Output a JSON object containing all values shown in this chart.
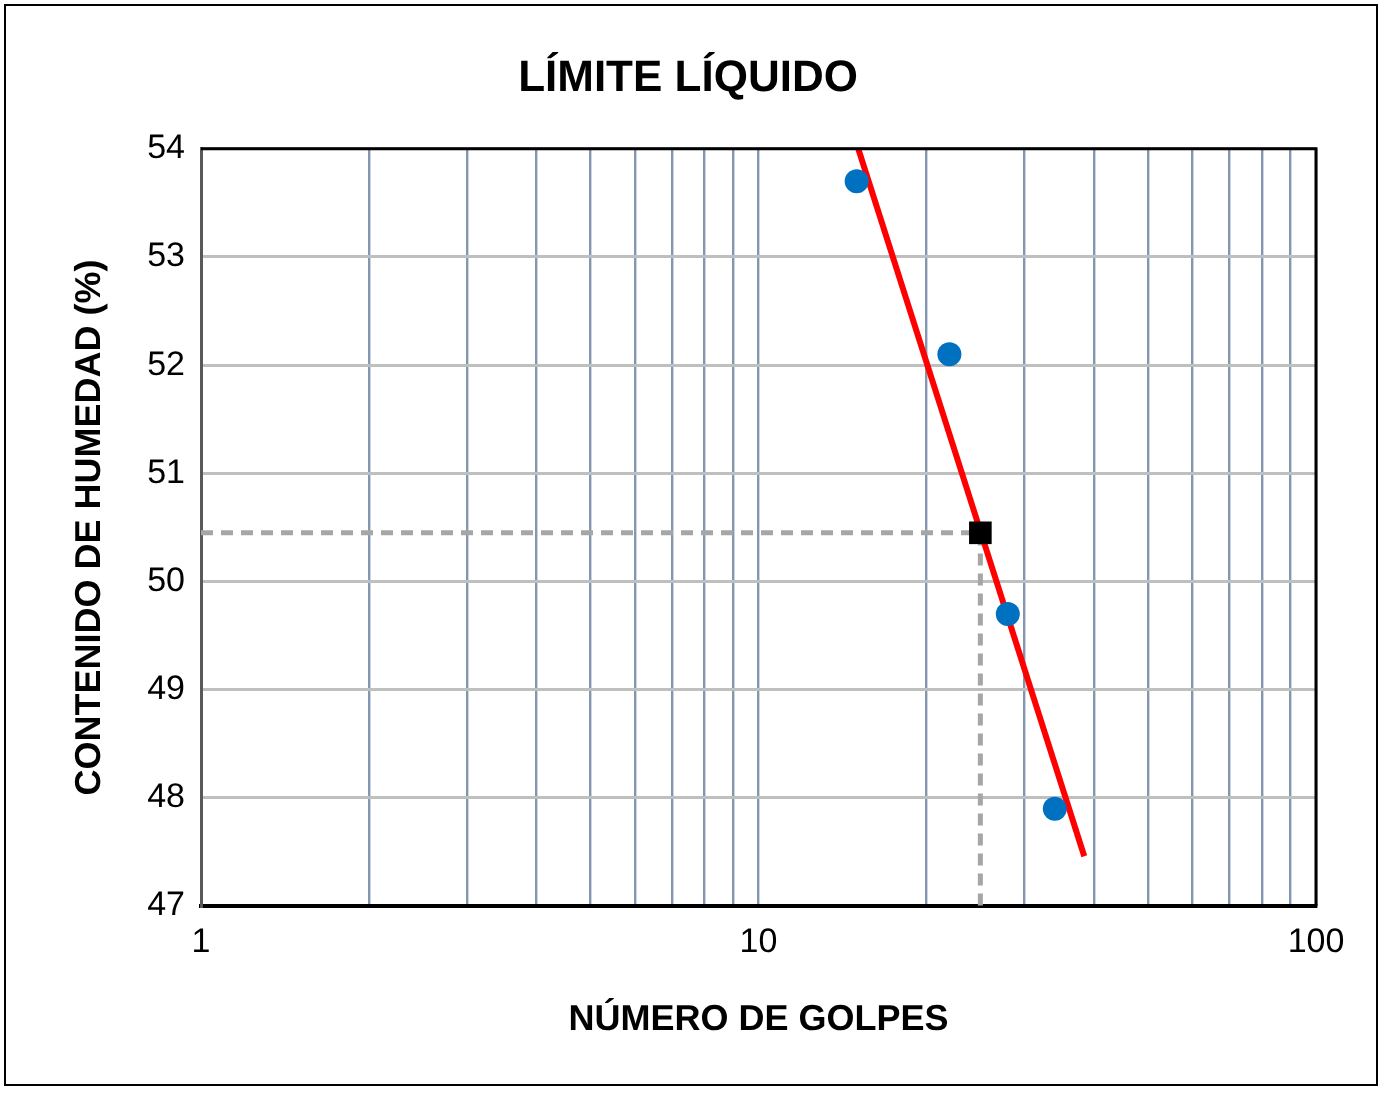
{
  "chart_data": {
    "type": "scatter",
    "title": "LÍMITE LÍQUIDO",
    "xlabel": "NÚMERO DE GOLPES",
    "ylabel": "CONTENIDO DE HUMEDAD (%)",
    "log": "x",
    "grid": true,
    "legend": false,
    "xlim": [
      1,
      100
    ],
    "ylim": [
      47,
      54
    ],
    "xticks": [
      1,
      {
        "value": 2,
        "label": null
      },
      {
        "value": 3,
        "label": null
      },
      {
        "value": 4,
        "label": null
      },
      {
        "value": 5,
        "label": null
      },
      {
        "value": 6,
        "label": null
      },
      {
        "value": 7,
        "label": null
      },
      {
        "value": 8,
        "label": null
      },
      {
        "value": 9,
        "label": null
      },
      10,
      {
        "value": 20,
        "label": null
      },
      {
        "value": 30,
        "label": null
      },
      {
        "value": 40,
        "label": null
      },
      {
        "value": 50,
        "label": null
      },
      {
        "value": 60,
        "label": null
      },
      {
        "value": 70,
        "label": null
      },
      {
        "value": 80,
        "label": null
      },
      {
        "value": 90,
        "label": null
      },
      100
    ],
    "yticks": [
      47,
      48,
      49,
      50,
      51,
      52,
      53,
      54
    ],
    "series": [
      {
        "type": "line",
        "color": "#a6a6a6",
        "line_style": "dashed",
        "marker": "none",
        "x": [
          1,
          25,
          25
        ],
        "values": [
          50.45,
          50.45,
          47
        ]
      },
      {
        "type": "line",
        "color": "#ff0000",
        "line_style": "solid",
        "marker": "none",
        "x": [
          15.1,
          38.4
        ],
        "values": [
          54,
          47.46
        ]
      },
      {
        "type": "scatter",
        "color": "#0070c0",
        "marker": "circle",
        "x": [
          15,
          22,
          28,
          34
        ],
        "values": [
          53.7,
          52.1,
          49.7,
          47.9
        ]
      },
      {
        "type": "scatter",
        "color": "#000000",
        "marker": "square",
        "x": [
          25
        ],
        "values": [
          50.45
        ]
      }
    ]
  }
}
